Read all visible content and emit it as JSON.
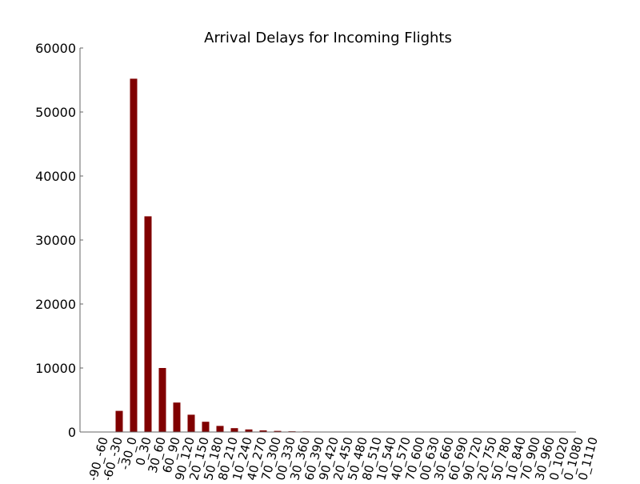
{
  "chart_data": {
    "type": "bar",
    "title": "Arrival Delays for Incoming Flights",
    "xlabel": "",
    "ylabel": "",
    "ylim": [
      0,
      60000
    ],
    "yticks": [
      0,
      10000,
      20000,
      30000,
      40000,
      50000,
      60000
    ],
    "bar_color": "#800000",
    "grid": false,
    "legend": "none",
    "categories": [
      "-90_-60",
      "-60_-30",
      "-30_0",
      "0_30",
      "30_60",
      "60_90",
      "90_120",
      "120_150",
      "150_180",
      "180_210",
      "210_240",
      "240_270",
      "270_300",
      "300_330",
      "330_360",
      "360_390",
      "390_420",
      "420_450",
      "450_480",
      "480_510",
      "510_540",
      "540_570",
      "570_600",
      "600_630",
      "630_660",
      "660_690",
      "690_720",
      "720_750",
      "750_780",
      "810_840",
      "870_900",
      "930_960",
      "990_1020",
      "1050_1080",
      "1080_1110"
    ],
    "values": [
      0,
      3300,
      55200,
      33700,
      10000,
      4600,
      2700,
      1600,
      950,
      600,
      400,
      250,
      170,
      110,
      80,
      50,
      35,
      25,
      18,
      12,
      10,
      8,
      6,
      5,
      4,
      3,
      3,
      2,
      2,
      2,
      1,
      1,
      1,
      1,
      1
    ]
  }
}
